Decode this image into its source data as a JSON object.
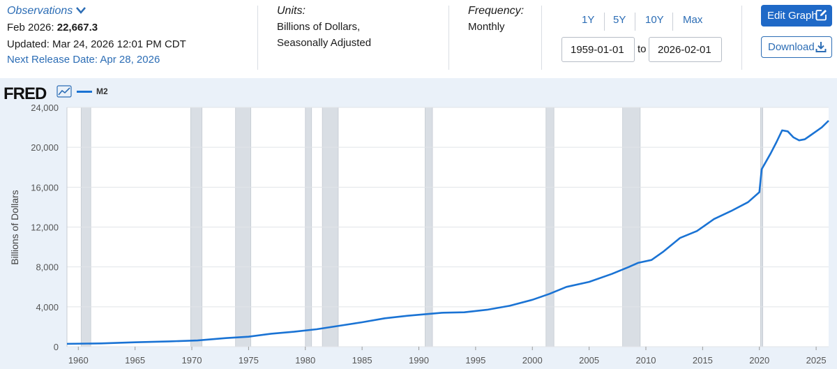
{
  "observations": {
    "label": "Observations",
    "latest_label": "Feb 2026:",
    "latest_value": "22,667.3",
    "updated": "Updated: Mar 24, 2026 12:01 PM CDT",
    "next_release": "Next Release Date: Apr 28, 2026"
  },
  "units": {
    "heading": "Units:",
    "line1": "Billions of Dollars,",
    "line2": "Seasonally Adjusted"
  },
  "frequency": {
    "heading": "Frequency:",
    "value": "Monthly"
  },
  "range_buttons": [
    "1Y",
    "5Y",
    "10Y",
    "Max"
  ],
  "date_range": {
    "start": "1959-01-01",
    "to_label": "to",
    "end": "2026-02-01"
  },
  "actions": {
    "edit_label": "Edit Graph",
    "download_label": "Download"
  },
  "branding": {
    "logo_text": "FRED"
  },
  "colors": {
    "series": "#1a73d4",
    "recession": "#d9dee4",
    "background": "#eaf1f9",
    "accent": "#1f69c7"
  },
  "chart_data": {
    "type": "line",
    "title": "",
    "xlabel": "",
    "ylabel": "Billions of Dollars",
    "legend": "top-left",
    "xlim": [
      1959,
      2026.1
    ],
    "ylim": [
      0,
      24000
    ],
    "grid": "horizontal",
    "x_ticks": [
      1960,
      1965,
      1970,
      1975,
      1980,
      1985,
      1990,
      1995,
      2000,
      2005,
      2010,
      2015,
      2020,
      2025
    ],
    "y_ticks": [
      0,
      4000,
      8000,
      12000,
      16000,
      20000,
      24000
    ],
    "y_tick_labels": [
      "0",
      "4,000",
      "8,000",
      "12,000",
      "16,000",
      "20,000",
      "24,000"
    ],
    "recessions": [
      [
        1960.25,
        1961.1
      ],
      [
        1969.9,
        1970.9
      ],
      [
        1973.85,
        1975.2
      ],
      [
        1980.0,
        1980.55
      ],
      [
        1981.5,
        1982.9
      ],
      [
        1990.55,
        1991.2
      ],
      [
        2001.2,
        2001.9
      ],
      [
        2007.95,
        2009.5
      ],
      [
        2020.1,
        2020.3
      ]
    ],
    "series": [
      {
        "name": "M2",
        "x": [
          1959.0,
          1962,
          1965,
          1968,
          1970.5,
          1973,
          1975,
          1977,
          1979,
          1981,
          1983,
          1985,
          1987,
          1989,
          1990.5,
          1992,
          1994,
          1996,
          1998,
          2000,
          2001.5,
          2003,
          2005,
          2007,
          2008.5,
          2009.3,
          2010.5,
          2011.5,
          2013,
          2014.5,
          2016,
          2017.5,
          2019,
          2020.0,
          2020.2,
          2020.6,
          2021.0,
          2021.5,
          2022.0,
          2022.5,
          2023.0,
          2023.5,
          2024.0,
          2024.5,
          2025.0,
          2025.5,
          2026.1
        ],
        "values": [
          290,
          330,
          440,
          530,
          620,
          860,
          1000,
          1300,
          1500,
          1750,
          2100,
          2450,
          2850,
          3100,
          3250,
          3400,
          3450,
          3700,
          4100,
          4700,
          5300,
          6000,
          6500,
          7300,
          8000,
          8400,
          8700,
          9500,
          10900,
          11600,
          12800,
          13600,
          14500,
          15500,
          17800,
          18600,
          19400,
          20500,
          21700,
          21600,
          21000,
          20700,
          20800,
          21200,
          21600,
          22000,
          22667.3
        ]
      }
    ]
  }
}
